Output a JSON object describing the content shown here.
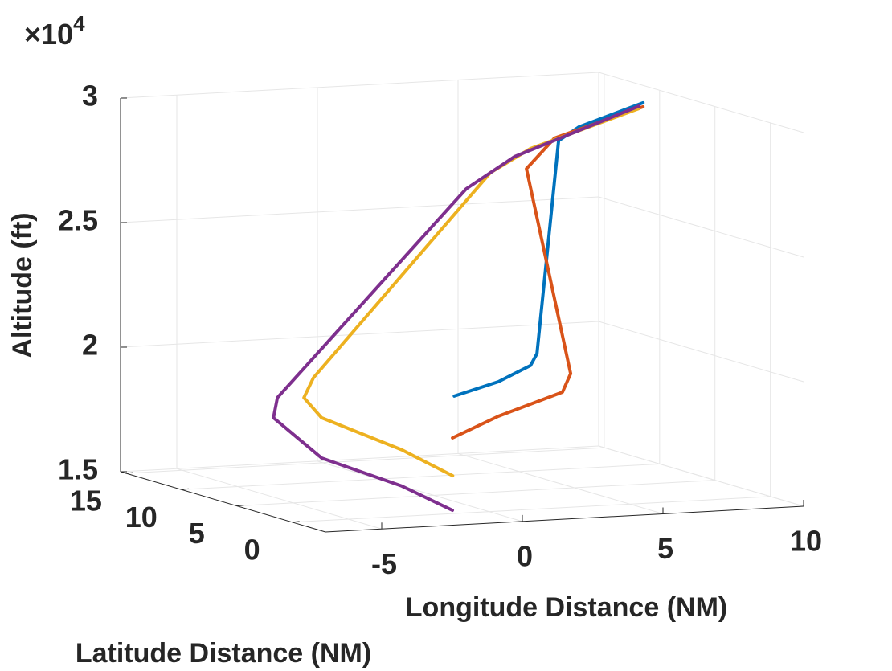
{
  "chart_data": {
    "type": "line3d",
    "xlabel": "Longitude Distance (NM)",
    "ylabel": "Latitude Distance (NM)",
    "zlabel": "Altitude (ft)",
    "z_exponent": {
      "base": "×10",
      "power": "4"
    },
    "xlim": [
      -7,
      10
    ],
    "ylim": [
      -3,
      15.5
    ],
    "zlim": [
      15000,
      30000
    ],
    "xticks": [
      -5,
      0,
      5,
      10
    ],
    "yticks": [
      0,
      5,
      10,
      15
    ],
    "zticks": [
      {
        "value": 15000,
        "label": "1.5"
      },
      {
        "value": 20000,
        "label": "2"
      },
      {
        "value": 25000,
        "label": "2.5"
      },
      {
        "value": 30000,
        "label": "3"
      }
    ],
    "grid": true,
    "series": [
      {
        "color": "#0072BD",
        "x": [
          0.73,
          2.3,
          3.44,
          3.67,
          4.44,
          5.75,
          8.82
        ],
        "y": [
          5,
          5,
          5,
          5,
          5,
          6.5,
          8.5
        ],
        "z": [
          18939,
          19423,
          20000,
          20468,
          28968,
          29242,
          29765
        ]
      },
      {
        "color": "#D95319",
        "x": [
          -0.12,
          1.51,
          3.79,
          4.08,
          2.51,
          4.49,
          8.82
        ],
        "y": [
          3,
          3,
          3,
          3,
          3,
          5.5,
          8.5
        ],
        "z": [
          17574,
          18345,
          19174,
          19900,
          28219,
          29000,
          29603
        ]
      },
      {
        "color": "#EDB120",
        "x": [
          2.25,
          0.45,
          -2.41,
          -3.04,
          -2.7,
          3.59,
          4.23,
          8.68
        ],
        "y": [
          9,
          9,
          9,
          9,
          9,
          9,
          7,
          8.5
        ],
        "z": [
          15129,
          16271,
          17735,
          18581,
          19365,
          27210,
          28400,
          29545
        ]
      },
      {
        "color": "#7E2F8E",
        "x": [
          -0.91,
          -1.92,
          -3.59,
          -2.94,
          -2.8,
          3.91,
          4.45,
          8.68
        ],
        "y": [
          1,
          3,
          6,
          12,
          12,
          12,
          9,
          8.5
        ],
        "z": [
          14980,
          15748,
          16585,
          17375,
          18173,
          26152,
          27803,
          29642
        ]
      }
    ]
  }
}
